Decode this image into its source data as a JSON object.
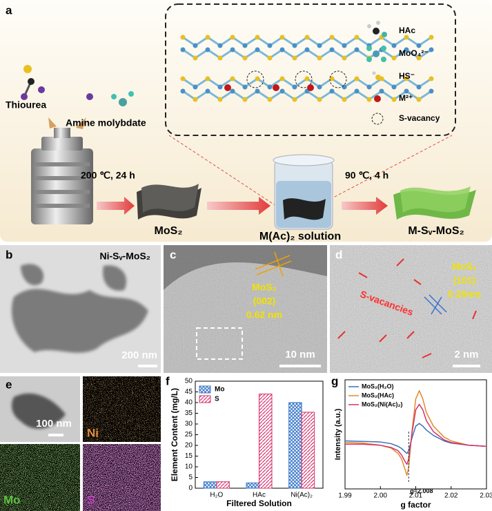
{
  "panel_a": {
    "label": "a",
    "reactants": [
      "Thiourea",
      "Amine molybdate"
    ],
    "step1": "200 ℃, 24 h",
    "product1": "MoS₂",
    "solution": "M(Ac)₂ solution",
    "step2": "90 ℃, 4 h",
    "product2": "M-Sᵥ-MoS₂",
    "legend": [
      "HAc",
      "MoO₄²⁻",
      "HS⁻",
      "M²⁺",
      "S-vacancy"
    ]
  },
  "panel_b": {
    "label": "b",
    "sample": "Ni-Sᵥ-MoS₂",
    "scale_bar": "200 nm"
  },
  "panel_c": {
    "label": "c",
    "annotation": [
      "MoS₂",
      "(002)",
      "0.62 nm"
    ],
    "scale_bar": "10 nm"
  },
  "panel_d": {
    "label": "d",
    "defect": "S-vacancies",
    "annotation": [
      "MoS₂",
      "(101)",
      "0.26nm"
    ],
    "scale_bar": "2 nm"
  },
  "panel_e": {
    "label": "e",
    "scale_bar": "100 nm",
    "maps": [
      "Ni",
      "Mo",
      "S"
    ]
  },
  "chart_data": [
    {
      "type": "bar",
      "panel_label": "f",
      "x_label": "Filtered Solution",
      "y_label": "Element Content (mg/L)",
      "categories": [
        "H₂O",
        "HAc",
        "Ni(Ac)₂"
      ],
      "series": [
        {
          "name": "Mo",
          "color": "#3a78c8",
          "pattern": "crosshatch",
          "values": [
            3,
            2.5,
            40
          ]
        },
        {
          "name": "S",
          "color": "#d6336c",
          "pattern": "diagonal",
          "values": [
            3,
            44,
            35.5
          ]
        }
      ],
      "ylim": [
        0,
        50
      ],
      "yticks": [
        0,
        5,
        10,
        15,
        20,
        25,
        30,
        35,
        40,
        45,
        50
      ],
      "legend": "upper left"
    },
    {
      "type": "line",
      "panel_label": "g",
      "x_label": "g factor",
      "y_label": "Intensity (a.u.)",
      "x": [
        1.99,
        1.995,
        2.0,
        2.003,
        2.005,
        2.006,
        2.007,
        2.0075,
        2.008,
        2.009,
        2.01,
        2.011,
        2.012,
        2.013,
        2.015,
        2.018,
        2.02,
        2.025,
        2.03
      ],
      "series": [
        {
          "name": "MoS₂(H₂O)",
          "color": "#3a6fb5",
          "values": [
            0.08,
            0.07,
            0.06,
            0.03,
            -0.02,
            -0.06,
            -0.12,
            -0.15,
            -0.1,
            0.15,
            0.35,
            0.4,
            0.35,
            0.28,
            0.18,
            0.08,
            0.04,
            0.0,
            -0.02
          ]
        },
        {
          "name": "MoS₂(HAc)",
          "color": "#e08a2c",
          "values": [
            0.05,
            0.04,
            0.0,
            -0.05,
            -0.15,
            -0.25,
            -0.45,
            -0.55,
            -0.4,
            0.3,
            0.85,
            1.0,
            0.85,
            0.6,
            0.35,
            0.15,
            0.08,
            0.0,
            -0.02
          ]
        },
        {
          "name": "MoS₂(Ni(Ac)₂)",
          "color": "#d4326b",
          "values": [
            0.02,
            0.02,
            0.0,
            -0.04,
            -0.1,
            -0.18,
            -0.3,
            -0.35,
            -0.25,
            0.25,
            0.65,
            0.75,
            0.65,
            0.45,
            0.25,
            0.1,
            0.05,
            0.0,
            -0.02
          ]
        }
      ],
      "xlim": [
        1.99,
        2.03
      ],
      "xticks": [
        1.99,
        {
          "value": 2.0,
          "label": "2.00"
        },
        2.01,
        {
          "value": 2.02,
          "label": "2.02"
        },
        2.03
      ],
      "ylim": [
        -0.8,
        1.2
      ],
      "annotations": [
        {
          "text": "g=2.008",
          "x": 2.008
        }
      ],
      "legend": "upper left"
    }
  ]
}
